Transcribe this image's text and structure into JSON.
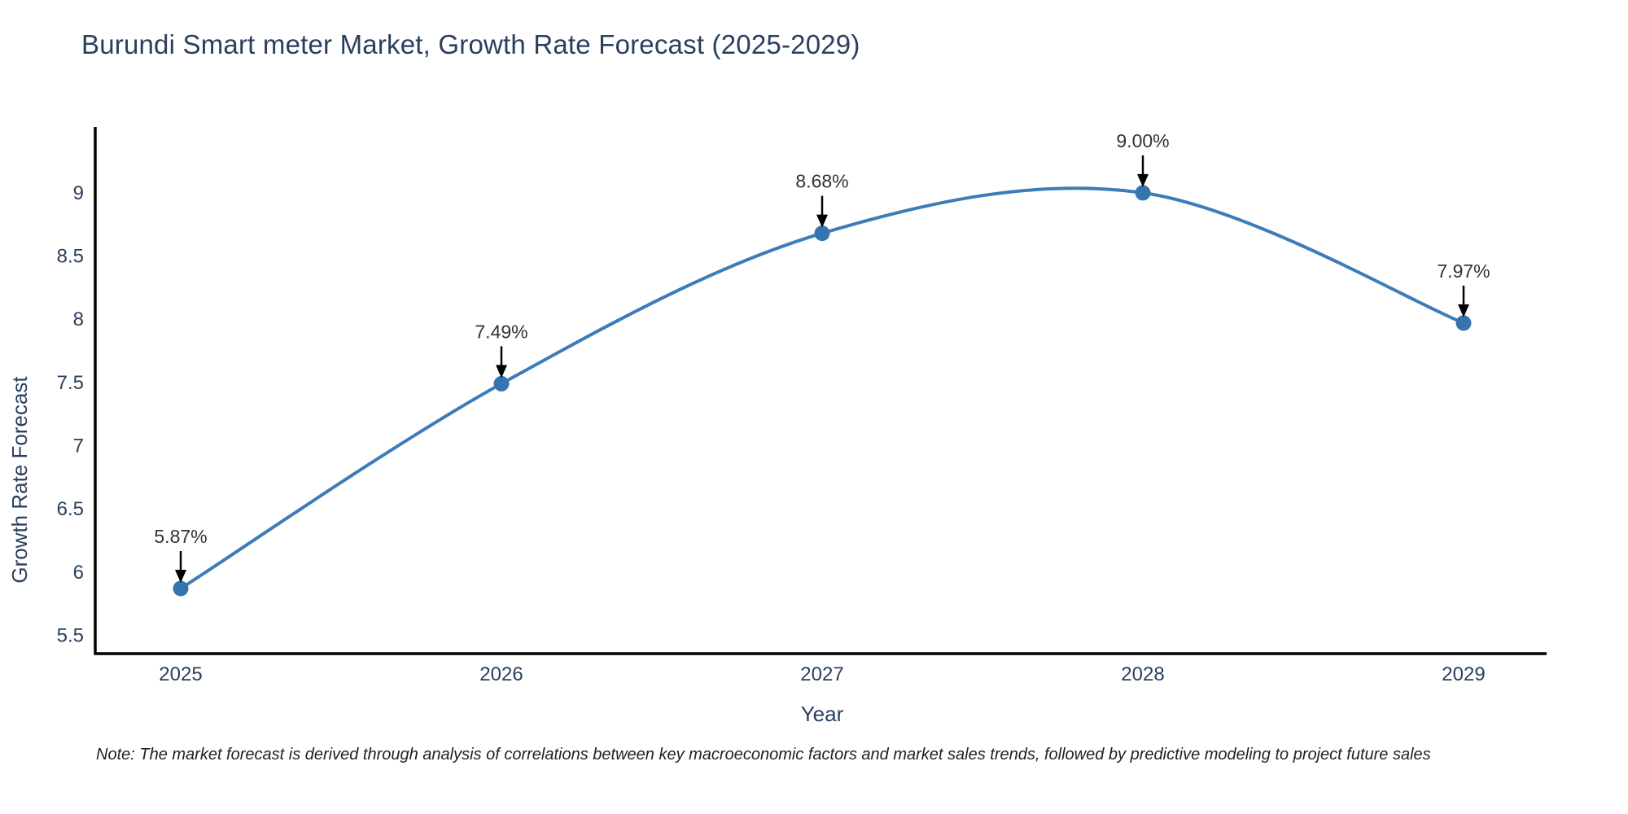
{
  "title": "Burundi Smart meter Market, Growth Rate Forecast (2025-2029)",
  "note": "Note: The market forecast is derived through analysis of correlations between key macroeconomic factors and market sales trends, followed by predictive modeling to project future sales",
  "chart_data": {
    "type": "line",
    "title": "Burundi Smart meter Market, Growth Rate Forecast (2025-2029)",
    "xlabel": "Year",
    "ylabel": "Growth Rate Forecast",
    "x": [
      2025,
      2026,
      2027,
      2028,
      2029
    ],
    "values": [
      5.87,
      7.49,
      8.68,
      9.0,
      7.97
    ],
    "point_labels": [
      "5.87%",
      "7.49%",
      "8.68%",
      "9.00%",
      "7.97%"
    ],
    "yticks": [
      5.5,
      6,
      6.5,
      7,
      7.5,
      8,
      8.5,
      9
    ],
    "xticks": [
      "2025",
      "2026",
      "2027",
      "2028",
      "2029"
    ],
    "ylim": [
      5.36,
      9.52
    ],
    "xlim": [
      2024.73,
      2029.26
    ],
    "grid": false,
    "legend": false,
    "smooth": true,
    "colors": {
      "line": "#3c7cb8",
      "marker": "#3674b0",
      "axis": "#000000",
      "tick_text": "#2a3f5f",
      "annotation_text": "#333333",
      "arrow": "#000000",
      "background": "#ffffff"
    }
  }
}
